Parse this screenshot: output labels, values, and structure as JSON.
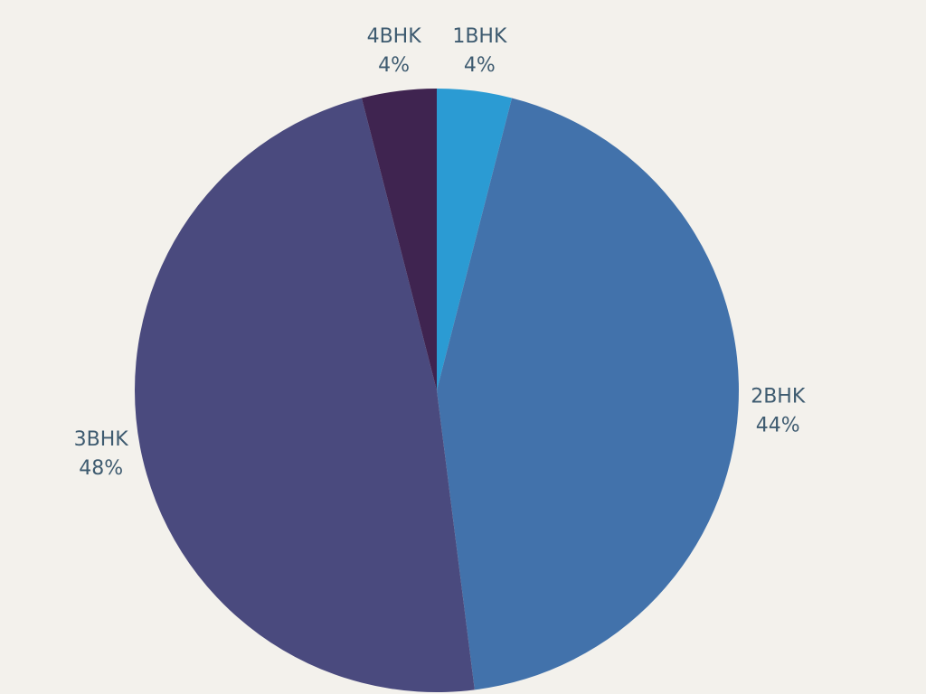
{
  "chart_data": {
    "type": "pie",
    "categories": [
      "1BHK",
      "2BHK",
      "3BHK",
      "4BHK"
    ],
    "values": [
      4,
      44,
      48,
      4
    ],
    "value_labels": [
      "4%",
      "44%",
      "48%",
      "4%"
    ],
    "colors": [
      "#2b9bd3",
      "#4272ab",
      "#4a4a7e",
      "#3f2450"
    ]
  }
}
